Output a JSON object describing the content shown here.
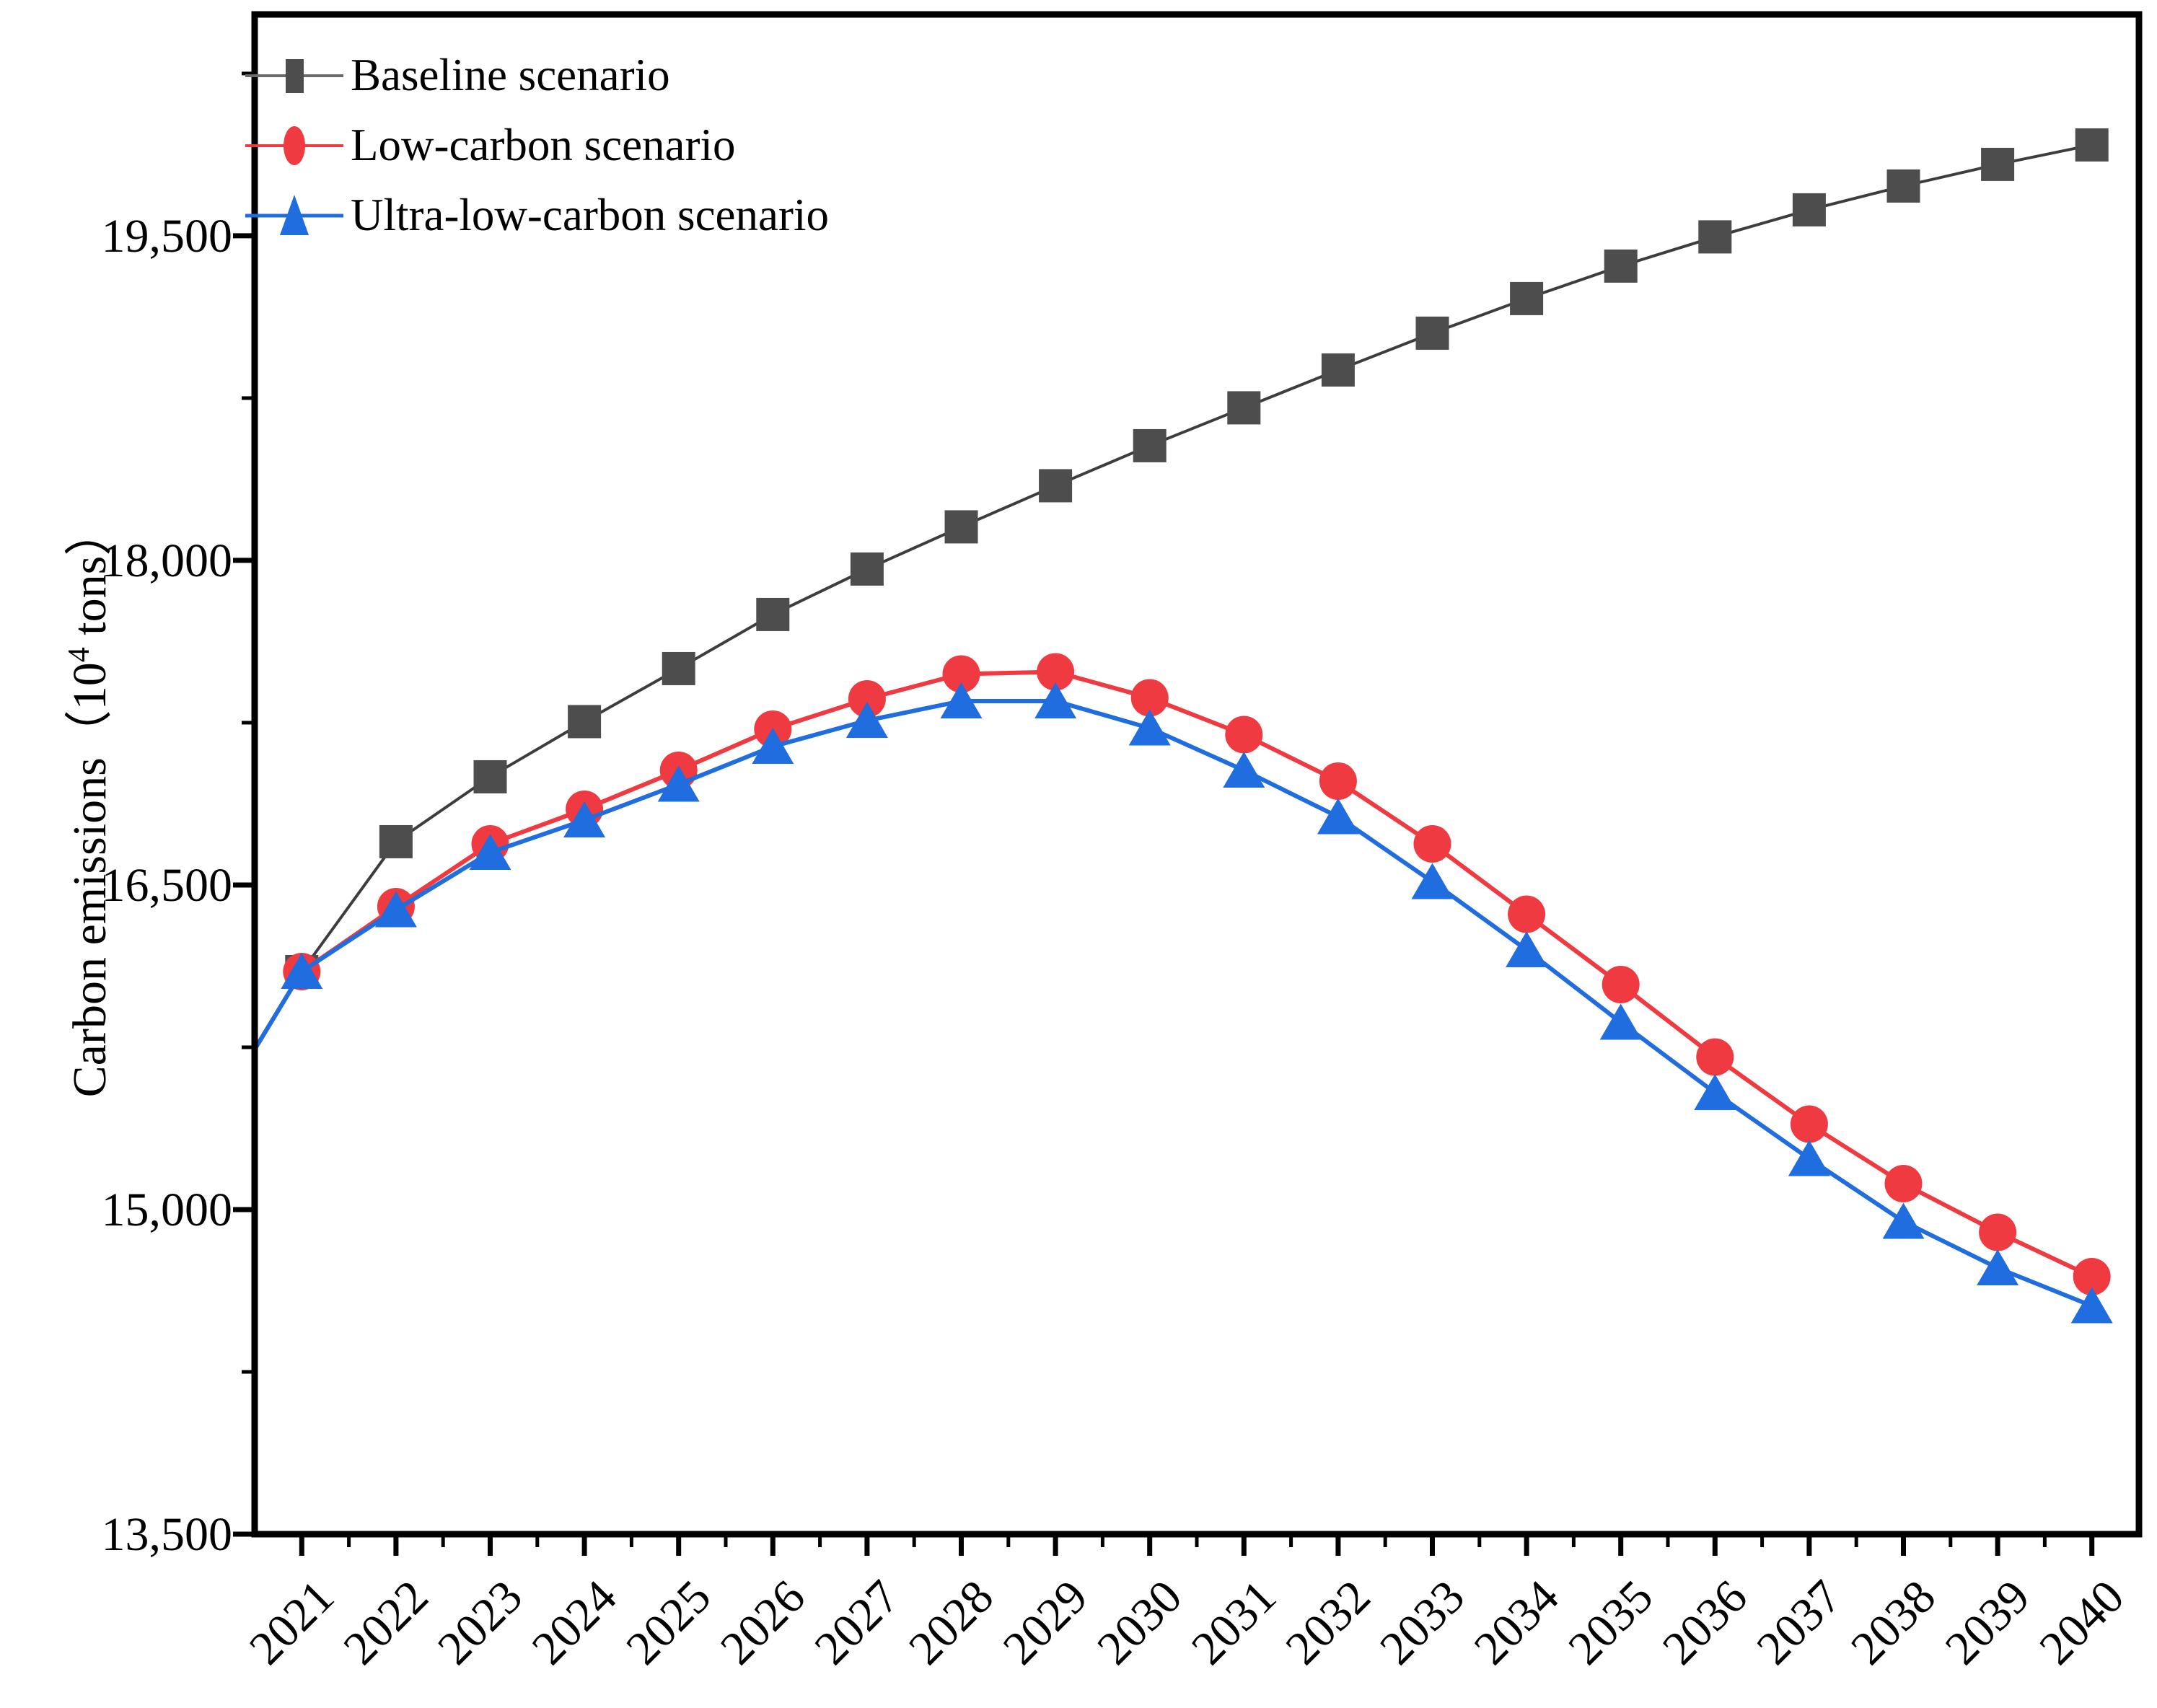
{
  "figure": {
    "kind": "line chart",
    "background": "#ffffff"
  },
  "y_axis": {
    "title_prefix": "Carbon emissions（10",
    "title_sup": "4",
    "title_suffix": " tons）",
    "tick_labels": [
      "13,500",
      "15,000",
      "16,500",
      "18,000",
      "19,500"
    ],
    "tick_values": [
      13500,
      15000,
      16500,
      18000,
      19500
    ],
    "minor_tick_values": [
      14250,
      15750,
      17250,
      18750,
      20250
    ],
    "range_min": 13500,
    "range_max": 20523
  },
  "x_axis": {
    "tick_labels": [
      "2021",
      "2022",
      "2023",
      "2024",
      "2025",
      "2026",
      "2027",
      "2028",
      "2029",
      "2030",
      "2031",
      "2032",
      "2033",
      "2034",
      "2035",
      "2036",
      "2037",
      "2038",
      "2039",
      "2040"
    ],
    "tick_values": [
      2021,
      2022,
      2023,
      2024,
      2025,
      2026,
      2027,
      2028,
      2029,
      2030,
      2031,
      2032,
      2033,
      2034,
      2035,
      2036,
      2037,
      2038,
      2039,
      2040
    ],
    "range_min": 2020.5,
    "range_max": 2040.5
  },
  "legend": {
    "items": [
      {
        "label": "Baseline scenario",
        "marker": "square"
      },
      {
        "label": "Low-carbon scenario",
        "marker": "circle"
      },
      {
        "label": "Ultra-low-carbon scenario",
        "marker": "triangle"
      }
    ]
  },
  "colors": {
    "baseline_marker": "#4d4d4d",
    "baseline_line": "#3d3d3d",
    "low_carbon": "#ee3a40",
    "ultra_low_carbon": "#1f6dde",
    "axis": "#000000",
    "text": "#000000"
  },
  "chart_data": {
    "type": "line",
    "title": "",
    "xlabel": "",
    "ylabel": "Carbon emissions（10^4 tons）",
    "x": [
      2021,
      2022,
      2023,
      2024,
      2025,
      2026,
      2027,
      2028,
      2029,
      2030,
      2031,
      2032,
      2033,
      2034,
      2035,
      2036,
      2037,
      2038,
      2039,
      2040
    ],
    "series": [
      {
        "name": "Baseline scenario",
        "marker": "square",
        "values": [
          16100,
          16700,
          17000,
          17255,
          17500,
          17750,
          17960,
          18155,
          18345,
          18530,
          18705,
          18880,
          19050,
          19210,
          19360,
          19495,
          19620,
          19730,
          19830,
          19920
        ]
      },
      {
        "name": "Low-carbon scenario",
        "marker": "circle",
        "values": [
          16100,
          16400,
          16690,
          16850,
          17030,
          17220,
          17360,
          17475,
          17485,
          17365,
          17195,
          16980,
          16690,
          16365,
          16040,
          15705,
          15395,
          15120,
          14895,
          14690
        ]
      },
      {
        "name": "Ultra-low-carbon scenario",
        "marker": "triangle",
        "values": [
          16100,
          16385,
          16650,
          16800,
          16965,
          17140,
          17260,
          17350,
          17350,
          17225,
          17030,
          16815,
          16515,
          16200,
          15865,
          15540,
          15235,
          14945,
          14730,
          14555
        ]
      }
    ],
    "visible_line_tail_at_left_axis": {
      "x": 2020.5,
      "value": 15740
    },
    "ylim": [
      13500,
      20523
    ],
    "xlim": [
      2020.5,
      2040.5
    ],
    "grid": false,
    "legend_position": "top-left inside plot"
  }
}
